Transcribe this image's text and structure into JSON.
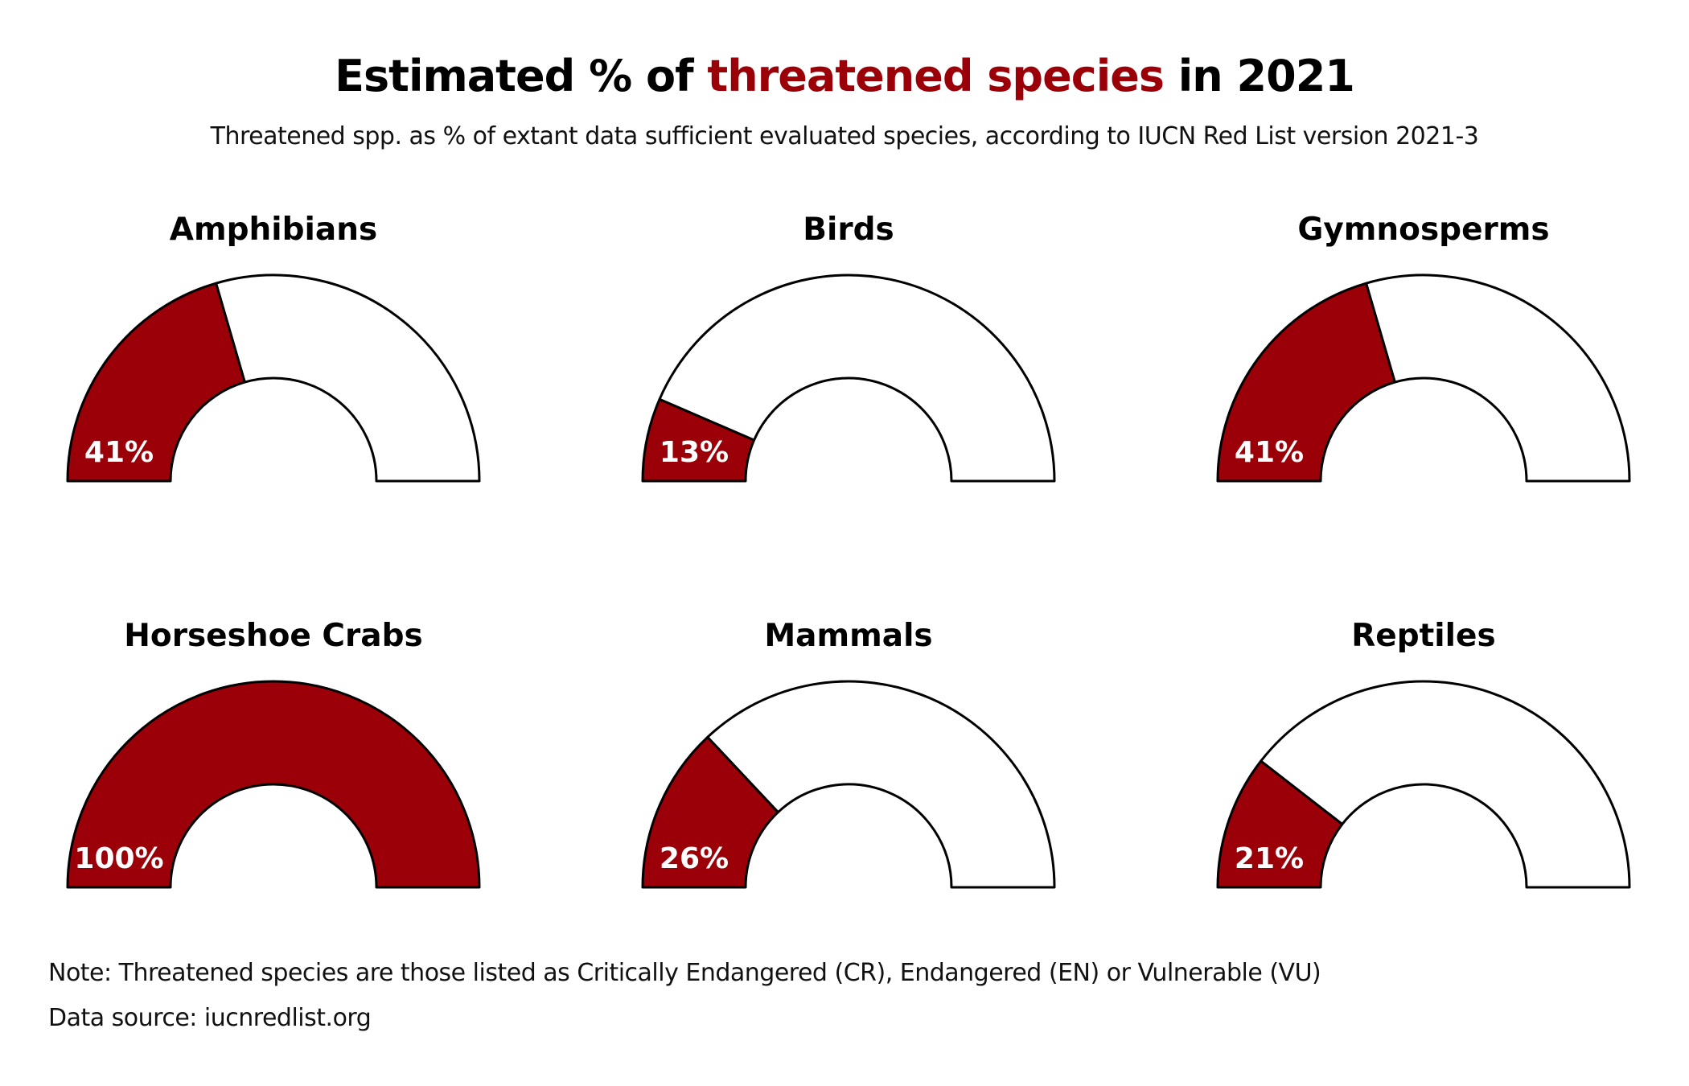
{
  "title": {
    "before": "Estimated % of ",
    "highlight": "threatened species",
    "after": " in 2021",
    "highlight_color": "#9b0008"
  },
  "subtitle": "Threatened spp. as % of extant data sufficient evaluated species, according to IUCN Red List version 2021-3",
  "note": "Note: Threatened species are those listed as Critically Endangered (CR), Endangered (EN) or Vulnerable (VU)",
  "source": "Data source: iucnredlist.org",
  "colors": {
    "threatened": "#9b0008",
    "remaining": "#ffffff",
    "outline": "#000000"
  },
  "chart_data": {
    "type": "gauge",
    "unit": "%",
    "range": [
      0,
      100
    ],
    "categories": [
      "Amphibians",
      "Birds",
      "Gymnosperms",
      "Horseshoe Crabs",
      "Mammals",
      "Reptiles"
    ],
    "values": [
      41,
      13,
      41,
      100,
      26,
      21
    ],
    "labels": [
      "41%",
      "13%",
      "41%",
      "100%",
      "26%",
      "21%"
    ]
  }
}
